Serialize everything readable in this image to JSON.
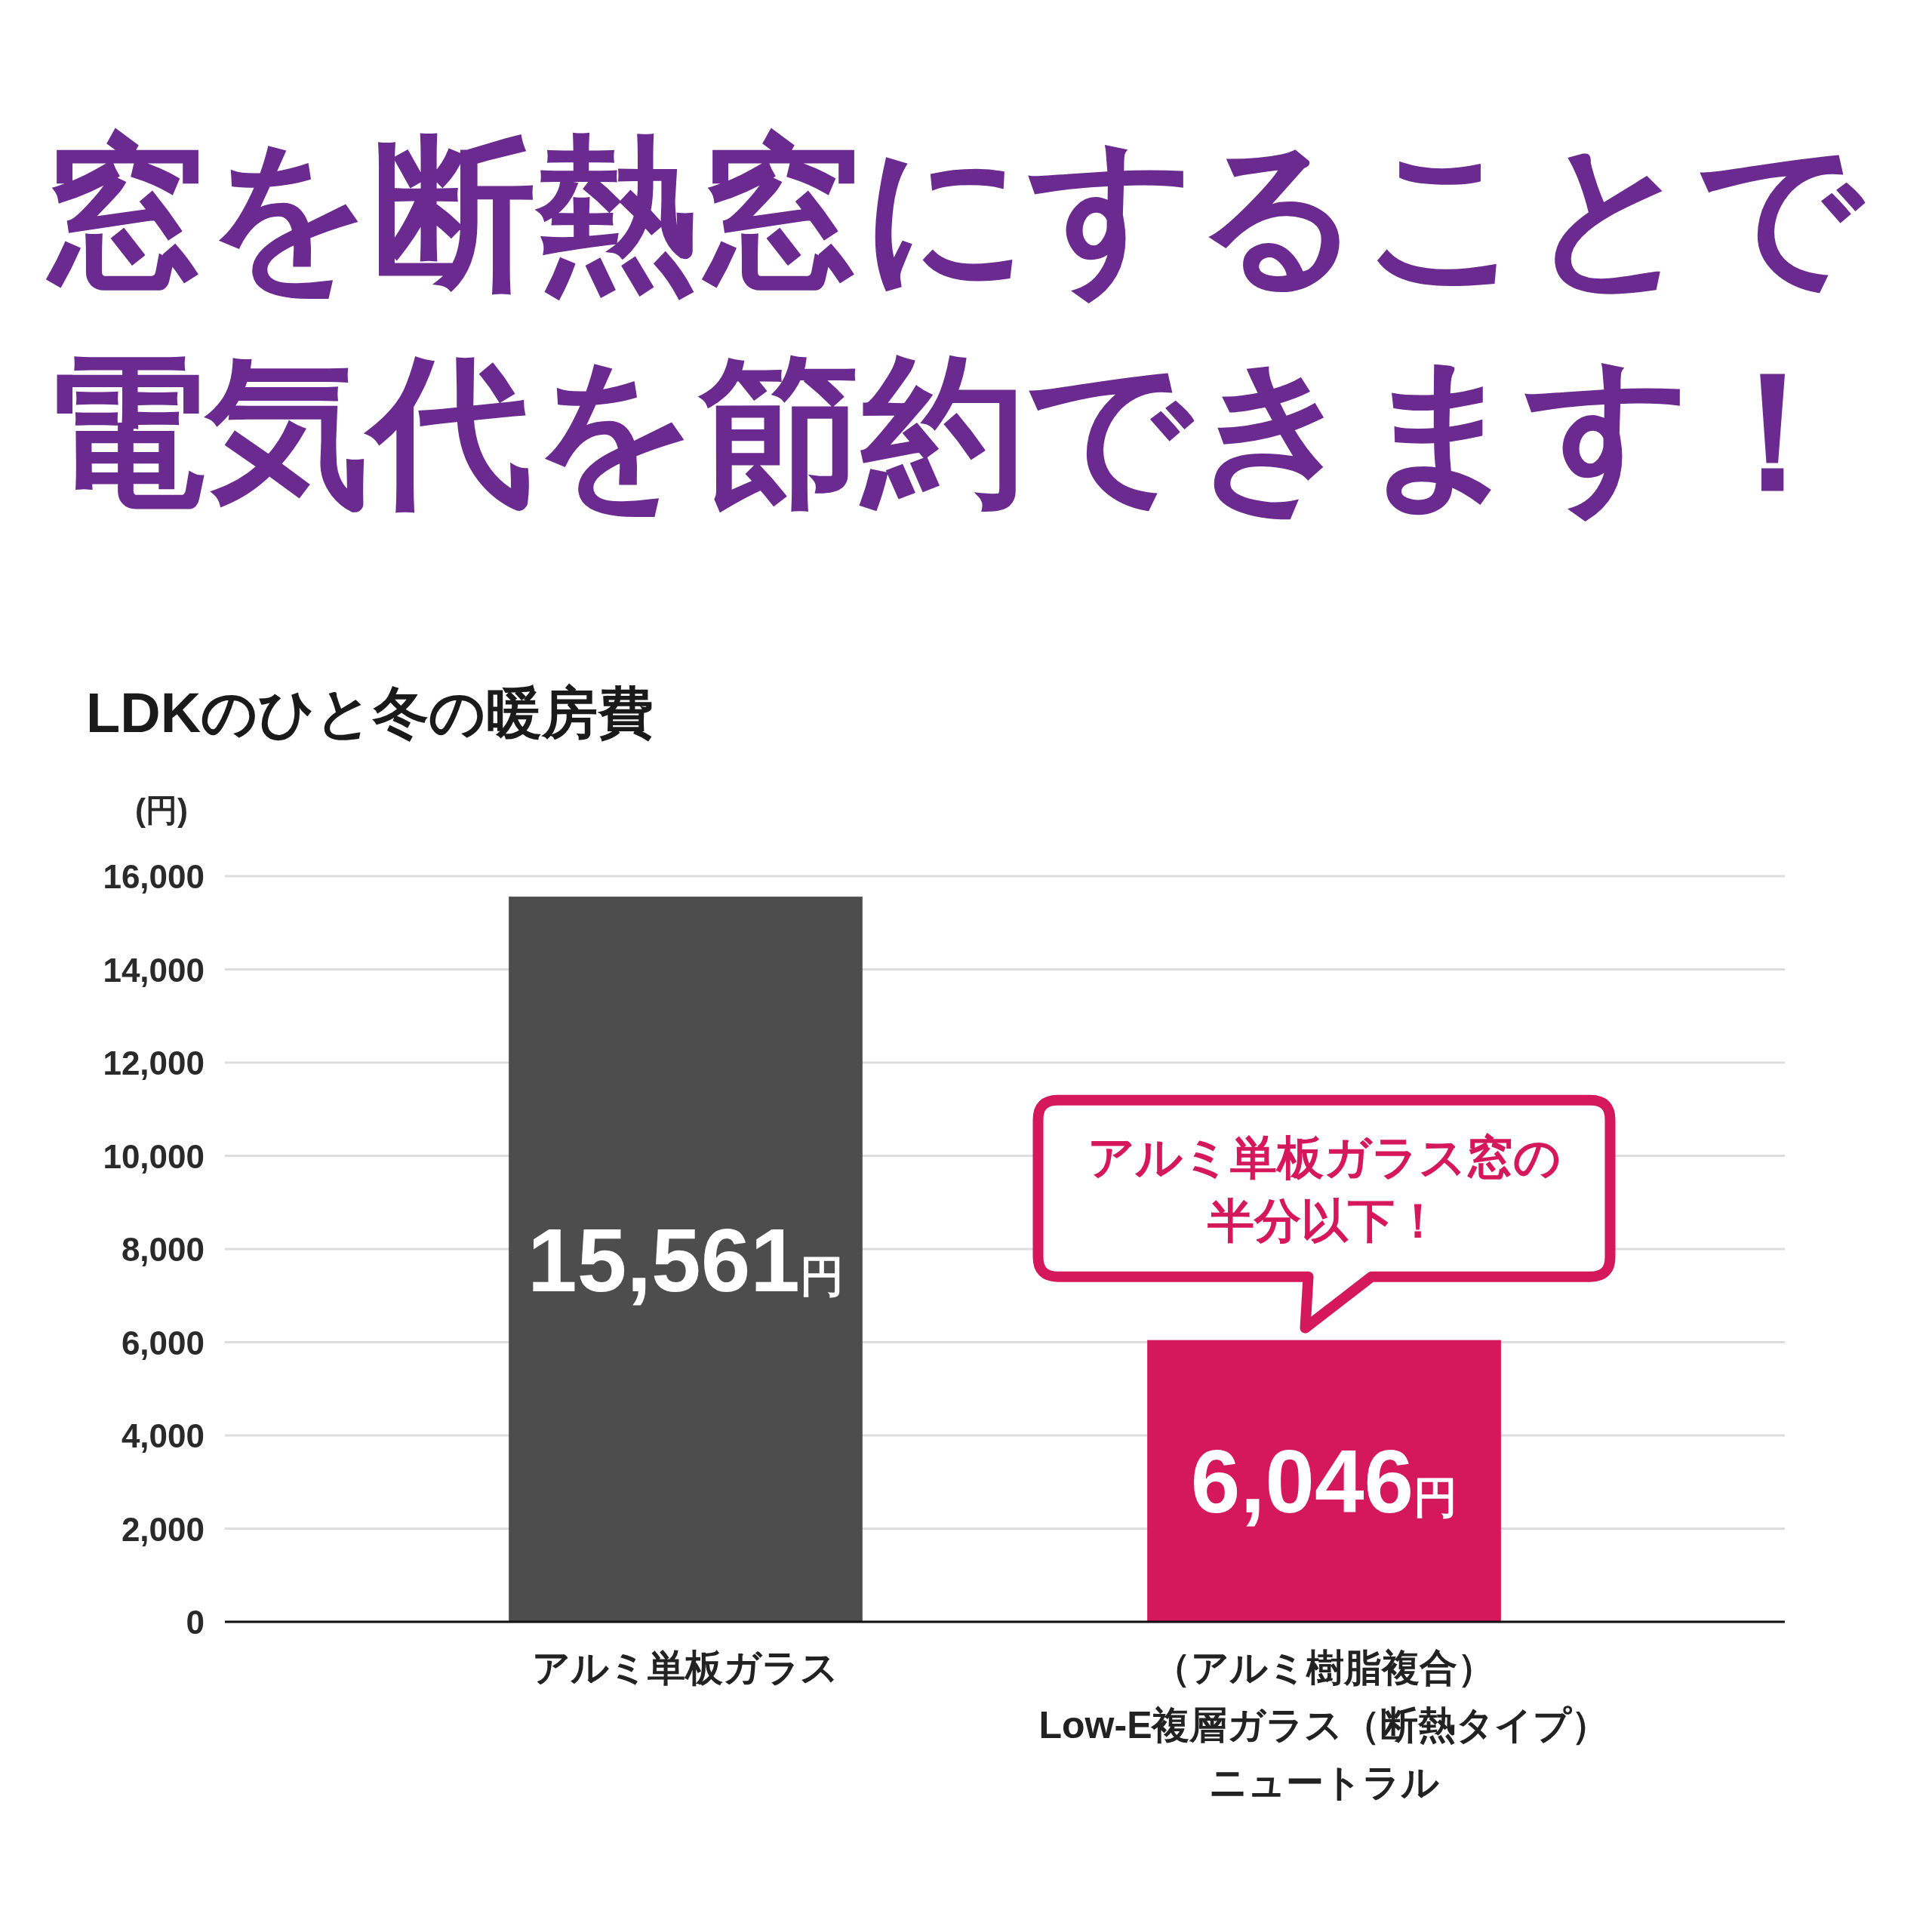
{
  "chart_data": {
    "type": "bar",
    "title": "窓を断熱窓にすることで電気代を節約できます！",
    "subtitle": "LDKのひと冬の暖房費",
    "ylabel": "(円)",
    "categories": [
      "アルミ単板ガラス",
      "（アルミ樹脂複合）Low-E複層ガラス（断熱タイプ）ニュートラル"
    ],
    "values": [
      15561,
      6046
    ],
    "colors": [
      "#4d4d4d",
      "#d4185a"
    ],
    "value_labels": [
      "15,561円",
      "6,046円"
    ],
    "ylim": [
      0,
      16000
    ],
    "yticks": [
      0,
      {
        "value": 2000,
        "label": "2,000"
      },
      {
        "value": 4000,
        "label": "4,000"
      },
      {
        "value": 6000,
        "label": "6,000"
      },
      {
        "value": 8000,
        "label": "8,000"
      },
      {
        "value": 10000,
        "label": "10,000"
      },
      {
        "value": 12000,
        "label": "12,000"
      },
      {
        "value": 14000,
        "label": "14,000"
      },
      {
        "value": 16000,
        "label": "16,000"
      }
    ],
    "grid": "y",
    "annotations": [
      {
        "text": "アルミ単板ガラス窓の半分以下！",
        "x": "（アルミ樹脂複合）Low-E複層ガラス（断熱タイプ）ニュートラル",
        "y": 6046
      }
    ]
  }
}
